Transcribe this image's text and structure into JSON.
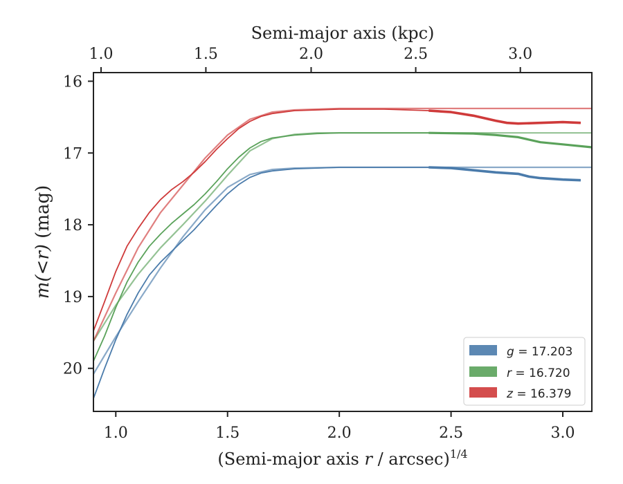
{
  "chart_data": {
    "type": "line",
    "title": "",
    "xlabel": "(Semi-major axis r / arcsec)",
    "xlabel_prefix": "(Semi-major axis ",
    "xlabel_var": "r",
    "xlabel_suffix": " / arcsec)",
    "xlabel_exponent": "1/4",
    "ylabel": "m(<r) (mag)",
    "ylabel_math": "m(<r)",
    "ylabel_unit": " (mag)",
    "top_xlabel": "Semi-major axis (kpc)",
    "xlim": [
      0.9,
      3.13
    ],
    "ylim": [
      20.6,
      15.88
    ],
    "y_inverted": true,
    "xticks": [
      1.0,
      1.5,
      2.0,
      2.5,
      3.0
    ],
    "xtick_labels": [
      "1.0",
      "1.5",
      "2.0",
      "2.5",
      "3.0"
    ],
    "yticks": [
      16,
      17,
      18,
      19,
      20
    ],
    "ytick_labels": [
      "16",
      "17",
      "18",
      "19",
      "20"
    ],
    "top_xticks": [
      1.0,
      1.5,
      2.0,
      2.5,
      3.0
    ],
    "top_xtick_labels": [
      "1.0",
      "1.5",
      "2.0",
      "2.5",
      "3.0"
    ],
    "top_xtick_positions": [
      0.934,
      1.403,
      1.874,
      2.342,
      2.81
    ],
    "legend_position": "lower-right",
    "series": [
      {
        "name": "g",
        "label_var": "g",
        "label_value": " = 17.203",
        "color": "#4a7bab",
        "asymptote": 17.203,
        "observed": [
          [
            0.9,
            20.42
          ],
          [
            0.95,
            20.0
          ],
          [
            1.0,
            19.6
          ],
          [
            1.05,
            19.25
          ],
          [
            1.1,
            18.95
          ],
          [
            1.15,
            18.7
          ],
          [
            1.2,
            18.52
          ],
          [
            1.25,
            18.37
          ],
          [
            1.3,
            18.22
          ],
          [
            1.35,
            18.07
          ],
          [
            1.4,
            17.9
          ],
          [
            1.45,
            17.73
          ],
          [
            1.5,
            17.57
          ],
          [
            1.55,
            17.44
          ],
          [
            1.6,
            17.34
          ],
          [
            1.65,
            17.28
          ],
          [
            1.7,
            17.25
          ],
          [
            1.8,
            17.22
          ],
          [
            1.9,
            17.21
          ],
          [
            2.0,
            17.2
          ],
          [
            2.2,
            17.2
          ],
          [
            2.4,
            17.2
          ],
          [
            2.5,
            17.21
          ],
          [
            2.6,
            17.24
          ],
          [
            2.7,
            17.27
          ],
          [
            2.8,
            17.29
          ],
          [
            2.85,
            17.33
          ],
          [
            2.9,
            17.35
          ],
          [
            3.0,
            17.37
          ],
          [
            3.08,
            17.38
          ]
        ],
        "model": [
          [
            0.9,
            20.08
          ],
          [
            0.95,
            19.82
          ],
          [
            1.0,
            19.56
          ],
          [
            1.1,
            19.07
          ],
          [
            1.2,
            18.6
          ],
          [
            1.3,
            18.17
          ],
          [
            1.4,
            17.79
          ],
          [
            1.5,
            17.48
          ],
          [
            1.6,
            17.3
          ],
          [
            1.7,
            17.23
          ],
          [
            1.8,
            17.21
          ],
          [
            2.0,
            17.2
          ],
          [
            3.13,
            17.2
          ]
        ]
      },
      {
        "name": "r",
        "label_var": "r",
        "label_value": " = 16.720",
        "color": "#5aa25a",
        "asymptote": 16.72,
        "observed": [
          [
            0.9,
            19.9
          ],
          [
            0.95,
            19.55
          ],
          [
            1.0,
            19.15
          ],
          [
            1.05,
            18.8
          ],
          [
            1.1,
            18.52
          ],
          [
            1.15,
            18.3
          ],
          [
            1.2,
            18.13
          ],
          [
            1.25,
            17.98
          ],
          [
            1.3,
            17.85
          ],
          [
            1.35,
            17.72
          ],
          [
            1.4,
            17.57
          ],
          [
            1.45,
            17.4
          ],
          [
            1.5,
            17.22
          ],
          [
            1.55,
            17.06
          ],
          [
            1.6,
            16.93
          ],
          [
            1.65,
            16.84
          ],
          [
            1.7,
            16.79
          ],
          [
            1.8,
            16.75
          ],
          [
            1.9,
            16.73
          ],
          [
            2.0,
            16.72
          ],
          [
            2.2,
            16.72
          ],
          [
            2.4,
            16.72
          ],
          [
            2.6,
            16.73
          ],
          [
            2.7,
            16.75
          ],
          [
            2.8,
            16.78
          ],
          [
            2.9,
            16.85
          ],
          [
            3.0,
            16.88
          ],
          [
            3.13,
            16.92
          ]
        ],
        "model": [
          [
            0.9,
            19.62
          ],
          [
            1.0,
            19.12
          ],
          [
            1.1,
            18.69
          ],
          [
            1.2,
            18.32
          ],
          [
            1.3,
            18.0
          ],
          [
            1.4,
            17.67
          ],
          [
            1.5,
            17.31
          ],
          [
            1.6,
            16.97
          ],
          [
            1.7,
            16.8
          ],
          [
            1.8,
            16.74
          ],
          [
            1.9,
            16.72
          ],
          [
            2.0,
            16.72
          ],
          [
            3.13,
            16.72
          ]
        ]
      },
      {
        "name": "z",
        "label_var": "z",
        "label_value": " = 16.379",
        "color": "#cf3a3a",
        "asymptote": 16.379,
        "observed": [
          [
            0.9,
            19.48
          ],
          [
            0.95,
            19.07
          ],
          [
            1.0,
            18.65
          ],
          [
            1.05,
            18.3
          ],
          [
            1.1,
            18.05
          ],
          [
            1.15,
            17.83
          ],
          [
            1.2,
            17.65
          ],
          [
            1.25,
            17.51
          ],
          [
            1.3,
            17.4
          ],
          [
            1.35,
            17.27
          ],
          [
            1.4,
            17.12
          ],
          [
            1.45,
            16.95
          ],
          [
            1.5,
            16.8
          ],
          [
            1.55,
            16.66
          ],
          [
            1.6,
            16.56
          ],
          [
            1.65,
            16.49
          ],
          [
            1.7,
            16.45
          ],
          [
            1.8,
            16.41
          ],
          [
            1.9,
            16.4
          ],
          [
            2.0,
            16.39
          ],
          [
            2.2,
            16.39
          ],
          [
            2.4,
            16.41
          ],
          [
            2.5,
            16.43
          ],
          [
            2.6,
            16.48
          ],
          [
            2.7,
            16.55
          ],
          [
            2.75,
            16.58
          ],
          [
            2.8,
            16.59
          ],
          [
            2.9,
            16.58
          ],
          [
            3.0,
            16.57
          ],
          [
            3.08,
            16.58
          ]
        ],
        "model": [
          [
            0.9,
            19.62
          ],
          [
            1.0,
            18.95
          ],
          [
            1.1,
            18.32
          ],
          [
            1.2,
            17.83
          ],
          [
            1.3,
            17.45
          ],
          [
            1.4,
            17.07
          ],
          [
            1.5,
            16.75
          ],
          [
            1.6,
            16.53
          ],
          [
            1.7,
            16.43
          ],
          [
            1.8,
            16.4
          ],
          [
            2.0,
            16.38
          ],
          [
            3.13,
            16.38
          ]
        ]
      }
    ]
  }
}
